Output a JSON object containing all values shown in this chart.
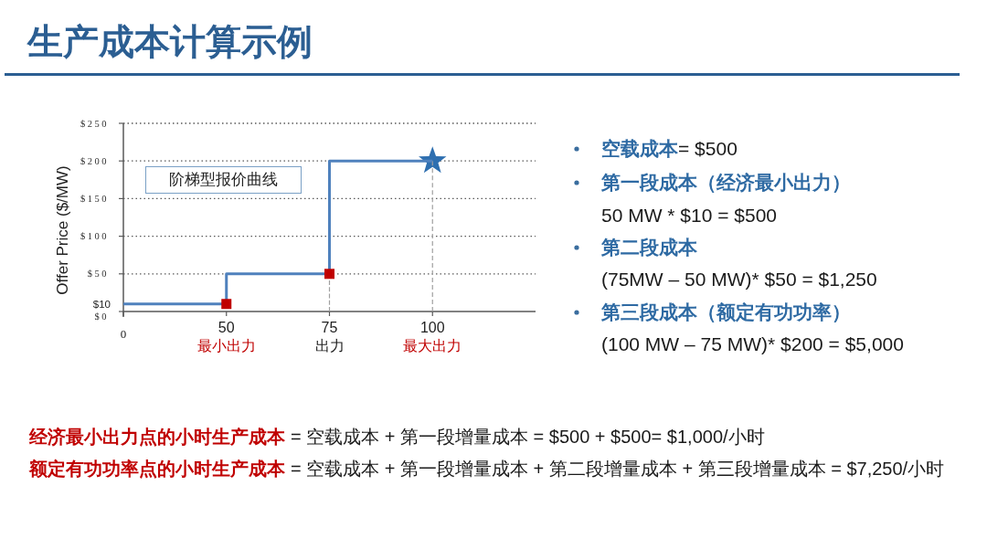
{
  "chart_data": {
    "type": "step",
    "title": "生产成本计算示例",
    "ylabel": "Offer Price ($/MW)",
    "categories": [
      "0",
      "50",
      "75",
      "100"
    ],
    "ylim": [
      0,
      250
    ],
    "yticks": [
      {
        "value": 0,
        "label": "$0"
      },
      {
        "value": 10,
        "label": "$10"
      },
      {
        "value": 50,
        "label": "$50"
      },
      {
        "value": 100,
        "label": "$100"
      },
      {
        "value": 150,
        "label": "$150"
      },
      {
        "value": 200,
        "label": "$200"
      },
      {
        "value": 250,
        "label": "$250"
      }
    ],
    "grid": "y",
    "series": [
      {
        "type": "line",
        "x": [
          "75",
          "75"
        ],
        "values": [
          0,
          50
        ],
        "color": "#a0a0a0",
        "line_style": "dashed"
      },
      {
        "type": "line",
        "x": [
          "100",
          "100"
        ],
        "values": [
          0,
          200
        ],
        "color": "#a0a0a0",
        "line_style": "dashed"
      },
      {
        "color": "#4f81bd",
        "values": [
          10,
          50,
          200,
          200
        ]
      },
      {
        "type": "scatter",
        "x": [
          "50",
          "75"
        ],
        "values": [
          10,
          50
        ],
        "color": "#c00000",
        "marker": "square"
      },
      {
        "type": "scatter",
        "x": [
          "100"
        ],
        "values": [
          200
        ],
        "color": "#2e6fb0",
        "marker": "star"
      }
    ],
    "annotations": [
      "阶梯型报价曲线",
      "最小出力",
      "出力",
      "最大出力",
      "空载成本",
      "= $500",
      "第一段成本（经济最小出力）",
      "50 MW * $10 = $500",
      "第二段成本",
      "(75MW – 50 MW)* $50 = $1,250",
      "第三段成本（额定有功功率）",
      "(100 MW – 75 MW)* $200 = $5,000",
      "经济最小出力点的小时生产成本",
      "= 空载成本 + 第一段增量成本 = $500 + $500= $1,000/小时",
      "额定有功功率点的小时生产成本",
      "= 空载成本 + 第一段增量成本 + 第二段增量成本 + 第三段增量成本 = $7,250/小时"
    ]
  }
}
